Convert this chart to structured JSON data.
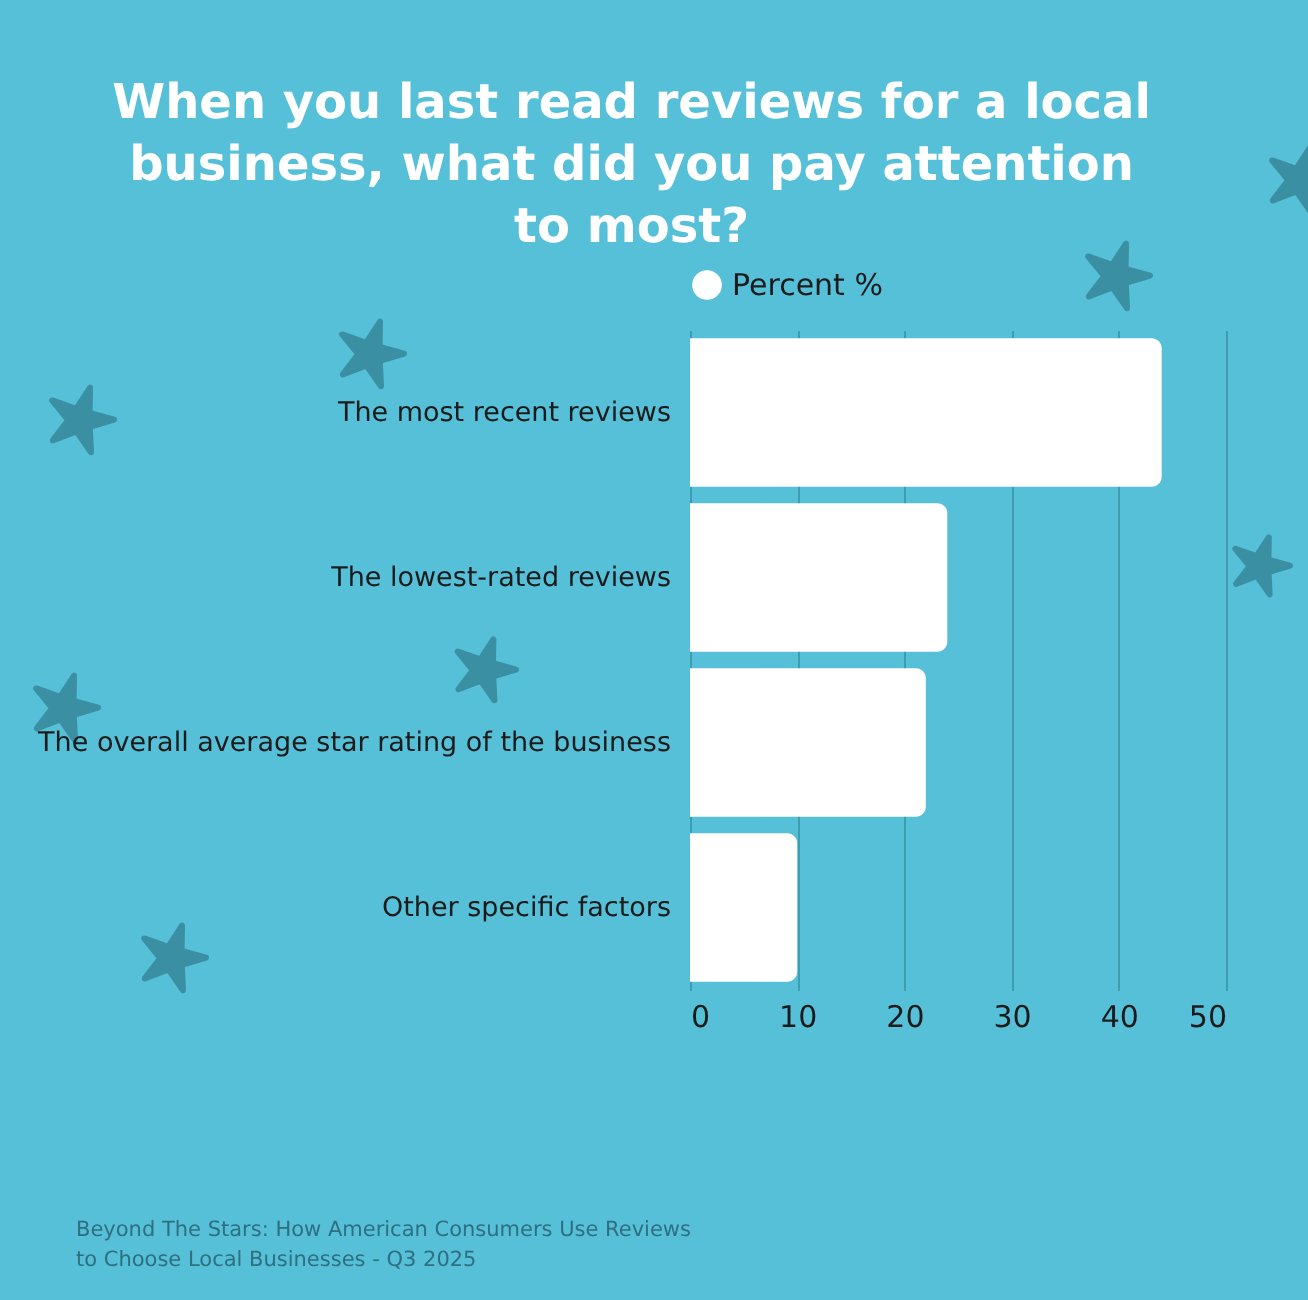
{
  "chart_data": {
    "type": "bar",
    "orientation": "horizontal",
    "title": "When you last read reviews for a local business, what did you pay attention to most?",
    "categories": [
      "The most recent reviews",
      "The lowest-rated reviews",
      "The overall average star rating of the business",
      "Other specific factors"
    ],
    "series": [
      {
        "name": "Percent %",
        "color": "#ffffff",
        "values": [
          44,
          24,
          22,
          10
        ]
      }
    ],
    "xlim": [
      0,
      50
    ],
    "xticks": [
      0,
      10,
      20,
      30,
      40,
      50
    ],
    "grid": "x",
    "legend": "top",
    "annotations": [
      "Beyond The Stars: How American Consumers Use Reviews to Choose Local Businesses - Q3 2025"
    ]
  }
}
